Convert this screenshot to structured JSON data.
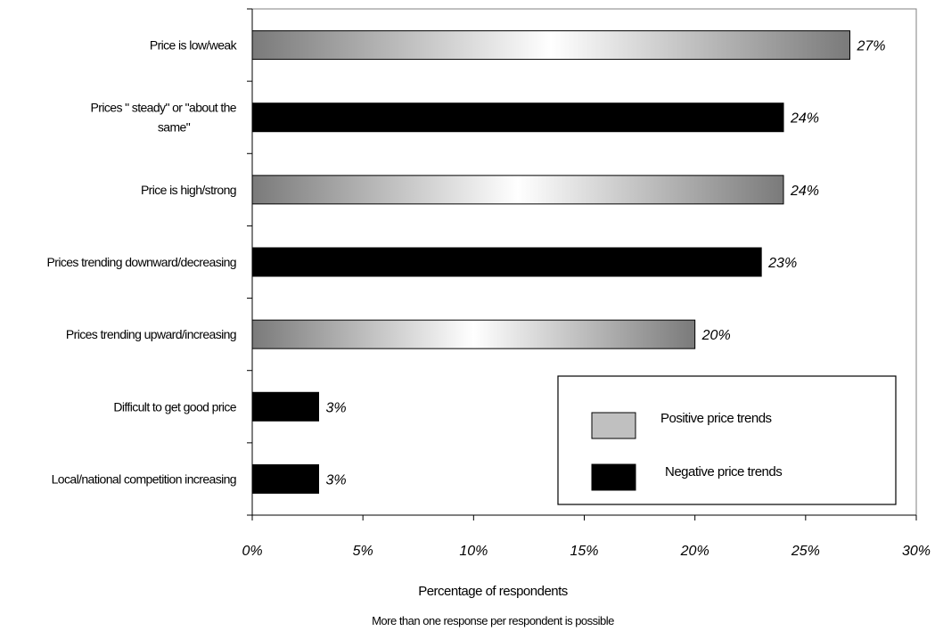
{
  "chart_data": {
    "type": "bar",
    "orientation": "horizontal",
    "categories": [
      "Price is low/weak",
      "Prices \" steady\" or \"about the same\"",
      "Price is high/strong",
      "Prices trending downward/decreasing",
      "Prices trending upward/increasing",
      "Difficult to get good price",
      "Local/national competition increasing"
    ],
    "category_lines": [
      [
        "Price is low/weak"
      ],
      [
        "Prices \" steady\" or \"about the",
        "same\""
      ],
      [
        "Price is high/strong"
      ],
      [
        "Prices trending downward/decreasing"
      ],
      [
        "Prices trending upward/increasing"
      ],
      [
        "Difficult to get good price"
      ],
      [
        "Local/national competition increasing"
      ]
    ],
    "values": [
      27,
      24,
      24,
      23,
      20,
      3,
      3
    ],
    "data_labels": [
      "27%",
      "24%",
      "24%",
      "23%",
      "20%",
      "3%",
      "3%"
    ],
    "series_index": [
      0,
      1,
      0,
      1,
      0,
      1,
      1
    ],
    "series": [
      {
        "name": "Positive price trends",
        "color": "#c0c0c0"
      },
      {
        "name": "Negative price trends",
        "color": "#000000"
      }
    ],
    "xlabel": "Percentage of respondents",
    "note": "More than one response per respondent is possible",
    "xlim": [
      0,
      30
    ],
    "xticks": [
      0,
      5,
      10,
      15,
      20,
      25,
      30
    ],
    "xtick_labels": [
      "0%",
      "5%",
      "10%",
      "15%",
      "20%",
      "25%",
      "30%"
    ],
    "grid": false,
    "legend_position": "bottom-right"
  }
}
